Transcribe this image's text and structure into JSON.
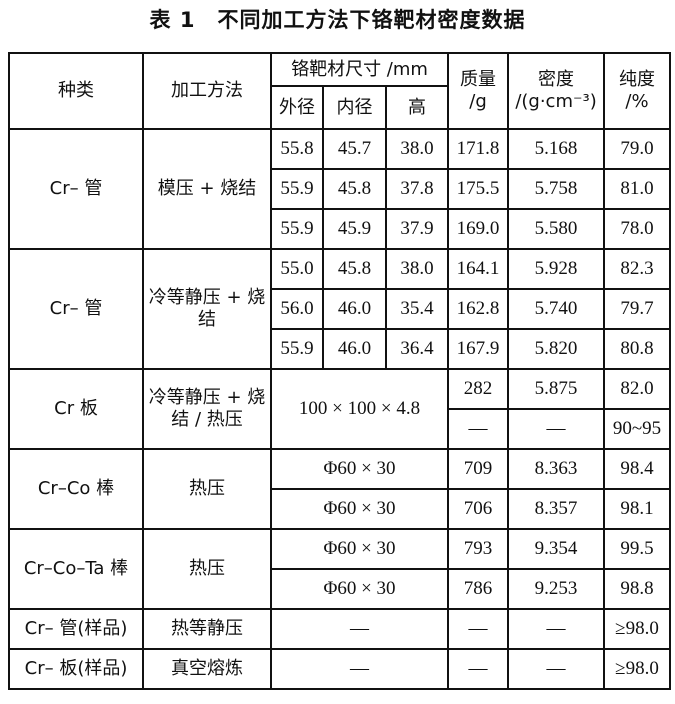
{
  "title": "表 1　不同加工方法下铬靶材密度数据",
  "headers": {
    "type": "种类",
    "method": "加工方法",
    "size": "铬靶材尺寸 /mm",
    "outer": "外径",
    "inner": "内径",
    "height": "高",
    "mass": "质量 /g",
    "density": "密度 /(g·cm⁻³)",
    "purity": "纯度 /%"
  },
  "groups": [
    {
      "type": "Cr– 管",
      "method": "模压 + 烧结",
      "rows": [
        {
          "outer": "55.8",
          "inner": "45.7",
          "height": "38.0",
          "mass": "171.8",
          "density": "5.168",
          "purity": "79.0"
        },
        {
          "outer": "55.9",
          "inner": "45.8",
          "height": "37.8",
          "mass": "175.5",
          "density": "5.758",
          "purity": "81.0"
        },
        {
          "outer": "55.9",
          "inner": "45.9",
          "height": "37.9",
          "mass": "169.0",
          "density": "5.580",
          "purity": "78.0"
        }
      ]
    },
    {
      "type": "Cr– 管",
      "method": "冷等静压 + 烧结",
      "rows": [
        {
          "outer": "55.0",
          "inner": "45.8",
          "height": "38.0",
          "mass": "164.1",
          "density": "5.928",
          "purity": "82.3"
        },
        {
          "outer": "56.0",
          "inner": "46.0",
          "height": "35.4",
          "mass": "162.8",
          "density": "5.740",
          "purity": "79.7"
        },
        {
          "outer": "55.9",
          "inner": "46.0",
          "height": "36.4",
          "mass": "167.9",
          "density": "5.820",
          "purity": "80.8"
        }
      ]
    },
    {
      "type": "Cr 板",
      "method": "冷等静压 + 烧结 / 热压",
      "size": "100 × 100 × 4.8",
      "rows": [
        {
          "mass": "282",
          "density": "5.875",
          "purity": "82.0"
        },
        {
          "mass": "—",
          "density": "—",
          "purity": "90~95"
        }
      ]
    },
    {
      "type": "Cr–Co 棒",
      "method": "热压",
      "rows": [
        {
          "size": "Φ60 × 30",
          "mass": "709",
          "density": "8.363",
          "purity": "98.4"
        },
        {
          "size": "Φ60 × 30",
          "mass": "706",
          "density": "8.357",
          "purity": "98.1"
        }
      ]
    },
    {
      "type": "Cr–Co–Ta 棒",
      "method": "热压",
      "rows": [
        {
          "size": "Φ60 × 30",
          "mass": "793",
          "density": "9.354",
          "purity": "99.5"
        },
        {
          "size": "Φ60 × 30",
          "mass": "786",
          "density": "9.253",
          "purity": "98.8"
        }
      ]
    },
    {
      "type": "Cr– 管(样品)",
      "method": "热等静压",
      "rows": [
        {
          "size": "—",
          "mass": "—",
          "density": "—",
          "purity": "≥98.0"
        }
      ]
    },
    {
      "type": "Cr– 板(样品)",
      "method": "真空熔炼",
      "rows": [
        {
          "size": "—",
          "mass": "—",
          "density": "—",
          "purity": "≥98.0"
        }
      ]
    }
  ]
}
